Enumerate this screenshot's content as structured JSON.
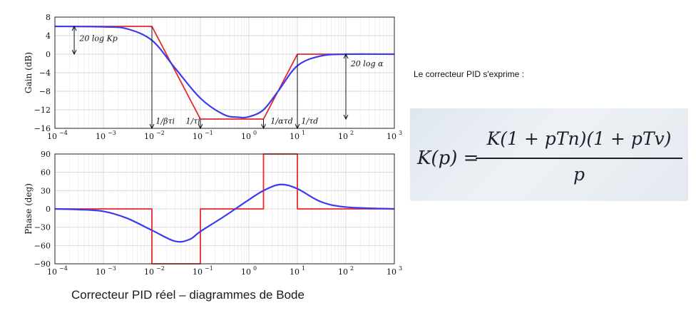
{
  "caption": "Correcteur PID réel – diagrammes de Bode",
  "side_text": "Le correcteur PID s'exprime :",
  "formula": {
    "lhs": "K(p) =",
    "numerator": "K(1 + pTn)(1 + pTv)",
    "denominator": "p"
  },
  "colors": {
    "asymptote": "#e8282a",
    "response": "#3a3af0",
    "grid": "#d9d9d9"
  },
  "chart_data": [
    {
      "type": "line",
      "xscale": "log",
      "xlim": [
        0.0001,
        1000
      ],
      "ylim": [
        -16,
        8
      ],
      "ylabel": "Gain (dB)",
      "yticks": [
        8,
        4,
        0,
        -4,
        -8,
        -12,
        -16
      ],
      "yticklabels": [
        "8",
        "4",
        "0",
        "−4",
        "−8",
        "−12",
        "−16"
      ],
      "xticks": [
        0.0001,
        0.001,
        0.01,
        0.1,
        1,
        10,
        100,
        1000
      ],
      "xticklabels": [
        [
          "10",
          "−4"
        ],
        [
          "10",
          "−3"
        ],
        [
          "10",
          "−2"
        ],
        [
          "10",
          "−1"
        ],
        [
          "10",
          "0"
        ],
        [
          "10",
          "1"
        ],
        [
          "10",
          "2"
        ],
        [
          "10",
          "3"
        ]
      ],
      "grid": true,
      "series": [
        {
          "role": "asymptote",
          "x": [
            0.0001,
            0.01,
            0.1,
            2,
            10,
            1000
          ],
          "y": [
            6,
            6,
            -14,
            -14,
            0,
            0
          ]
        },
        {
          "role": "response",
          "x": [
            0.0001,
            0.001,
            0.003,
            0.01,
            0.03,
            0.1,
            0.3,
            0.6,
            1,
            2,
            4,
            10,
            30,
            100,
            1000
          ],
          "y": [
            6,
            5.9,
            5.5,
            3,
            -3,
            -9.5,
            -13,
            -13.6,
            -13.5,
            -12,
            -8,
            -2.5,
            -0.4,
            0,
            0
          ]
        }
      ],
      "annotations": [
        {
          "text": "20 log Kp",
          "x": 0.00025,
          "y": 6
        },
        {
          "text": "20 log α",
          "x": 120,
          "y": -2
        },
        {
          "text": "1/βτi",
          "x": 0.012,
          "y": -15
        },
        {
          "text": "1/τi",
          "x": 0.05,
          "y": -15
        },
        {
          "text": "1/ατd",
          "x": 2.8,
          "y": -15
        },
        {
          "text": "1/τd",
          "x": 12,
          "y": -15
        }
      ]
    },
    {
      "type": "line",
      "xscale": "log",
      "xlim": [
        0.0001,
        1000
      ],
      "ylim": [
        -90,
        90
      ],
      "ylabel": "Phase (deg)",
      "yticks": [
        90,
        60,
        30,
        0,
        -30,
        -60,
        -90
      ],
      "yticklabels": [
        "90",
        "60",
        "30",
        "0",
        "−30",
        "−60",
        "−90"
      ],
      "xticks": [
        0.0001,
        0.001,
        0.01,
        0.1,
        1,
        10,
        100,
        1000
      ],
      "xticklabels": [
        [
          "10",
          "−4"
        ],
        [
          "10",
          "−3"
        ],
        [
          "10",
          "−2"
        ],
        [
          "10",
          "−1"
        ],
        [
          "10",
          "0"
        ],
        [
          "10",
          "1"
        ],
        [
          "10",
          "2"
        ],
        [
          "10",
          "3"
        ]
      ],
      "grid": true,
      "series": [
        {
          "role": "asymptote",
          "x": [
            0.0001,
            0.01,
            0.01,
            0.1,
            0.1,
            2,
            2,
            10,
            10,
            1000
          ],
          "y": [
            0,
            0,
            -90,
            -90,
            0,
            0,
            90,
            90,
            0,
            0
          ]
        },
        {
          "role": "response",
          "x": [
            0.0001,
            0.0003,
            0.001,
            0.003,
            0.01,
            0.03,
            0.06,
            0.1,
            0.3,
            1,
            2,
            4.5,
            10,
            30,
            100,
            1000
          ],
          "y": [
            0,
            -1,
            -4,
            -15,
            -35,
            -53,
            -50,
            -37,
            -13,
            15,
            30,
            40,
            33,
            12,
            3,
            0
          ]
        }
      ]
    }
  ]
}
